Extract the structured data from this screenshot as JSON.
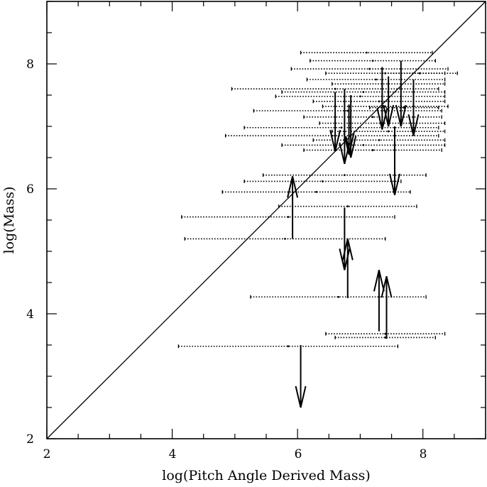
{
  "chart_data": {
    "type": "scatter",
    "title": "",
    "xlabel": "log(Pitch Angle Derived Mass)",
    "ylabel": "log(Mass)",
    "xlim": [
      2,
      9
    ],
    "ylim": [
      2,
      9
    ],
    "xticks": [
      2,
      4,
      6,
      8
    ],
    "yticks": [
      2,
      4,
      6,
      8
    ],
    "xtick_labels": [
      "2",
      "4",
      "6",
      "8"
    ],
    "ytick_labels": [
      "2",
      "4",
      "6",
      "8"
    ],
    "minor_tick_step": 0.5,
    "reference_line": {
      "name": "one-to-one",
      "from": [
        2,
        2
      ],
      "to": [
        9,
        9
      ]
    },
    "colors": {
      "ink": "#000000",
      "background": "#ffffff"
    },
    "series": [
      {
        "name": "measurements",
        "style": "dotted horizontal error bars",
        "points": [
          {
            "x": 7.1,
            "y": 8.18,
            "xerr": 1.05
          },
          {
            "x": 7.2,
            "y": 8.05,
            "xerr": 1.0
          },
          {
            "x": 7.15,
            "y": 7.92,
            "xerr": 1.25
          },
          {
            "x": 7.4,
            "y": 7.85,
            "xerr": 0.95
          },
          {
            "x": 7.25,
            "y": 7.75,
            "xerr": 1.1
          },
          {
            "x": 7.45,
            "y": 7.68,
            "xerr": 0.9
          },
          {
            "x": 6.6,
            "y": 7.6,
            "xerr": 1.65
          },
          {
            "x": 7.05,
            "y": 7.55,
            "xerr": 1.3
          },
          {
            "x": 7.0,
            "y": 7.48,
            "xerr": 1.35
          },
          {
            "x": 7.3,
            "y": 7.4,
            "xerr": 1.05
          },
          {
            "x": 7.4,
            "y": 7.32,
            "xerr": 1.0
          },
          {
            "x": 6.8,
            "y": 7.25,
            "xerr": 1.5
          },
          {
            "x": 7.2,
            "y": 7.15,
            "xerr": 1.1
          },
          {
            "x": 7.35,
            "y": 7.05,
            "xerr": 1.0
          },
          {
            "x": 6.7,
            "y": 6.98,
            "xerr": 1.55
          },
          {
            "x": 7.45,
            "y": 6.92,
            "xerr": 0.9
          },
          {
            "x": 6.55,
            "y": 6.85,
            "xerr": 1.7
          },
          {
            "x": 7.3,
            "y": 6.78,
            "xerr": 1.05
          },
          {
            "x": 7.05,
            "y": 6.7,
            "xerr": 1.3
          },
          {
            "x": 7.2,
            "y": 6.62,
            "xerr": 1.1
          },
          {
            "x": 6.75,
            "y": 6.22,
            "xerr": 1.3
          },
          {
            "x": 6.4,
            "y": 6.12,
            "xerr": 1.25
          },
          {
            "x": 6.3,
            "y": 5.95,
            "xerr": 1.5
          },
          {
            "x": 6.8,
            "y": 5.72,
            "xerr": 1.1
          },
          {
            "x": 5.85,
            "y": 5.55,
            "xerr": 1.7
          },
          {
            "x": 5.8,
            "y": 5.2,
            "xerr": 1.6
          },
          {
            "x": 6.65,
            "y": 4.27,
            "xerr": 1.4
          },
          {
            "x": 7.4,
            "y": 3.68,
            "xerr": 0.95
          },
          {
            "x": 7.4,
            "y": 3.62,
            "xerr": 0.8
          },
          {
            "x": 5.85,
            "y": 3.48,
            "xerr": 1.75
          },
          {
            "x": 7.95,
            "y": 7.85,
            "xerr": 0.6
          },
          {
            "x": 7.7,
            "y": 7.3,
            "xerr": 0.55
          }
        ]
      },
      {
        "name": "limits",
        "style": "arrows",
        "arrows": [
          {
            "x": 6.6,
            "y_from": 7.55,
            "y_to": 6.6
          },
          {
            "x": 6.75,
            "y_from": 7.6,
            "y_to": 6.4
          },
          {
            "x": 6.85,
            "y_from": 7.5,
            "y_to": 6.5
          },
          {
            "x": 6.82,
            "y_from": 7.35,
            "y_to": 6.55
          },
          {
            "x": 7.35,
            "y_from": 7.95,
            "y_to": 6.95
          },
          {
            "x": 7.45,
            "y_from": 7.8,
            "y_to": 7.0
          },
          {
            "x": 7.65,
            "y_from": 8.05,
            "y_to": 7.0
          },
          {
            "x": 7.85,
            "y_from": 7.75,
            "y_to": 6.85
          },
          {
            "x": 7.55,
            "y_from": 7.0,
            "y_to": 5.9
          },
          {
            "x": 5.92,
            "y_from": 5.2,
            "y_to": 6.2
          },
          {
            "x": 6.75,
            "y_from": 5.7,
            "y_to": 4.7
          },
          {
            "x": 6.8,
            "y_from": 4.25,
            "y_to": 5.2
          },
          {
            "x": 7.3,
            "y_from": 3.72,
            "y_to": 4.7
          },
          {
            "x": 7.42,
            "y_from": 3.6,
            "y_to": 4.6
          },
          {
            "x": 6.05,
            "y_from": 3.5,
            "y_to": 2.5
          }
        ]
      }
    ]
  }
}
